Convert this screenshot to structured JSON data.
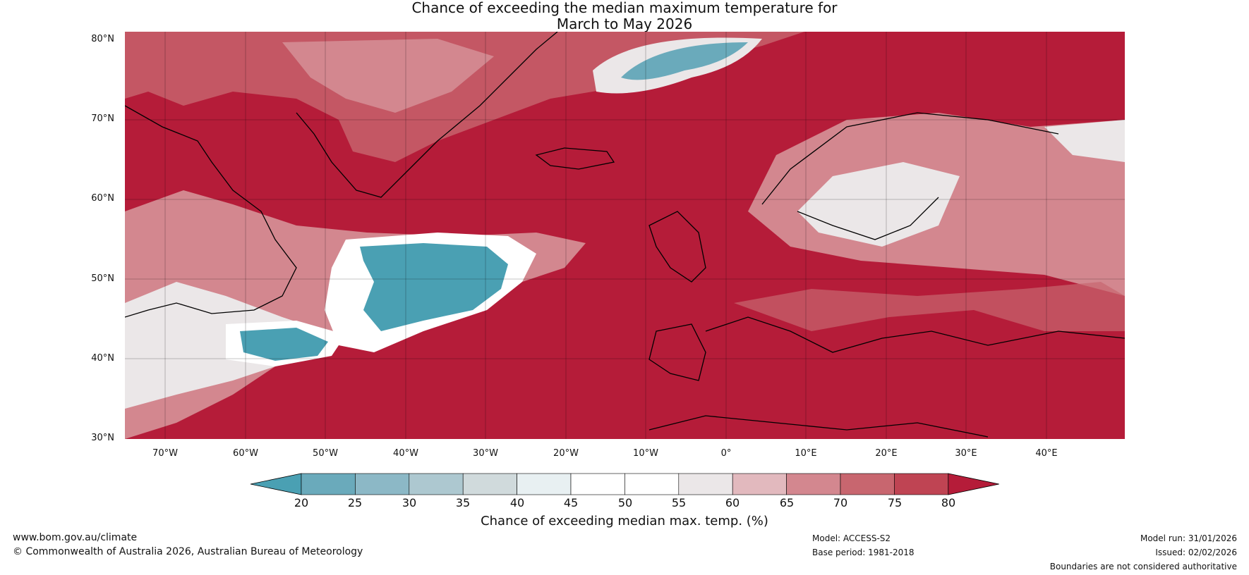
{
  "title": {
    "line1": "Chance of exceeding the median maximum temperature for",
    "line2": "March to May 2026"
  },
  "map": {
    "lat_labels": [
      "80°N",
      "70°N",
      "60°N",
      "50°N",
      "40°N",
      "30°N"
    ],
    "lon_labels": [
      "70°W",
      "60°W",
      "50°W",
      "40°W",
      "30°W",
      "20°W",
      "10°W",
      "0°",
      "10°E",
      "20°E",
      "30°E",
      "40°E"
    ],
    "colors": {
      "ocean_above": "#b51c39",
      "land_above": "#b51c39"
    }
  },
  "colorbar": {
    "ticks": [
      "20",
      "25",
      "30",
      "35",
      "40",
      "45",
      "50",
      "55",
      "60",
      "65",
      "70",
      "75",
      "80"
    ],
    "colors": [
      "#4aa0b3",
      "#6aaabb",
      "#8cb8c6",
      "#adc8d0",
      "#d0dadc",
      "#e8f0f2",
      "#ffffff",
      "#ffffff",
      "#ebe7e8",
      "#e2b9be",
      "#d3878f",
      "#c8666f",
      "#bf4453",
      "#b51c39"
    ],
    "label": "Chance of exceeding median max. temp. (%)"
  },
  "footer": {
    "website": "www.bom.gov.au/climate",
    "copyright": "© Commonwealth of Australia 2026, Australian Bureau of Meteorology",
    "model": "Model: ACCESS-S2",
    "base_period": "Base period: 1981-2018",
    "model_run": "Model run: 31/01/2026",
    "issued": "Issued: 02/02/2026",
    "disclaimer": "Boundaries are not considered authoritative"
  }
}
